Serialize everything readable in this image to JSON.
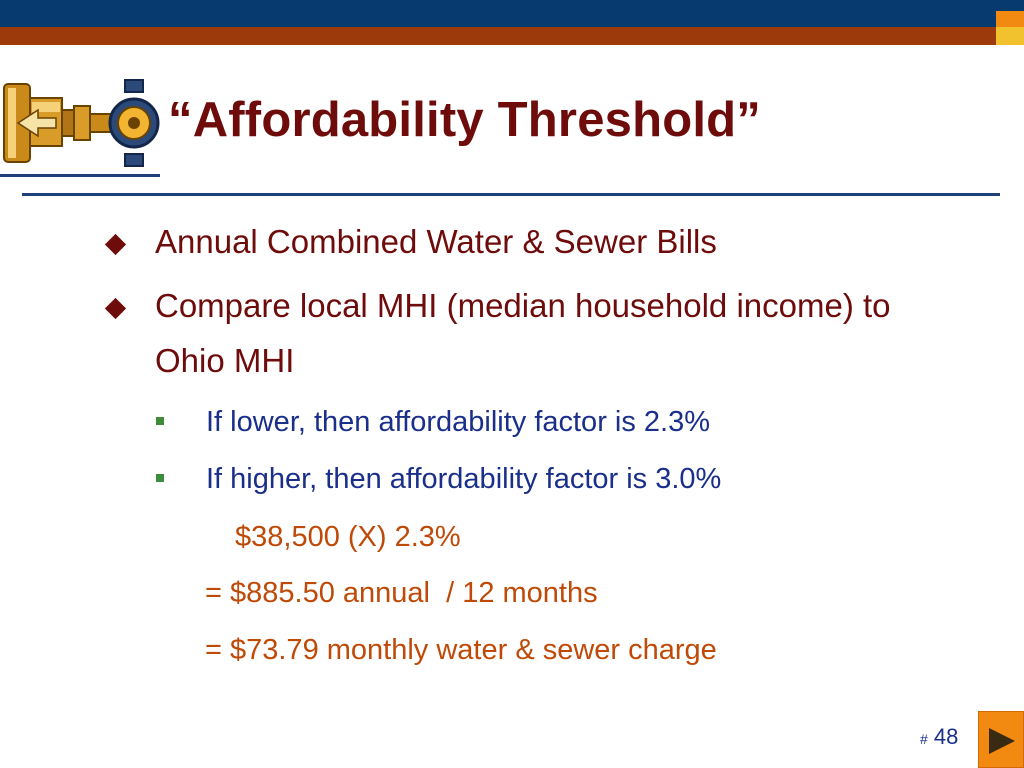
{
  "colors": {
    "header_blue": "#073A6E",
    "header_rust": "#9C3A0C",
    "accent_gold": "#F2C12E",
    "accent_orange": "#F28A11",
    "title_maroon": "#6E0B0B",
    "subbullet_blue": "#1A2F8A",
    "calc_orange": "#BF4A08",
    "rule_navy": "#1F3F78"
  },
  "logo": {
    "icon": "pipe-valve-icon"
  },
  "slide": {
    "title": "“Affordability Threshold”",
    "bullets": [
      {
        "icon": "diamond-bullet-icon",
        "text": "Annual Combined Water & Sewer Bills"
      },
      {
        "icon": "diamond-bullet-icon",
        "text": "Compare local MHI (median household income) to Ohio MHI"
      }
    ],
    "sub_bullets": [
      {
        "icon": "square-bullet-icon",
        "text": "If lower, then affordability factor is 2.3%"
      },
      {
        "icon": "square-bullet-icon",
        "text": "If higher, then affordability factor is 3.0%"
      }
    ],
    "calculation": [
      "$38,500 (X) 2.3%",
      "= $885.50 annual  / 12 months",
      "= $73.79 monthly water & sewer charge"
    ]
  },
  "footer": {
    "page_hash": "#",
    "page_number": "48",
    "next_icon": "play-triangle-icon"
  }
}
